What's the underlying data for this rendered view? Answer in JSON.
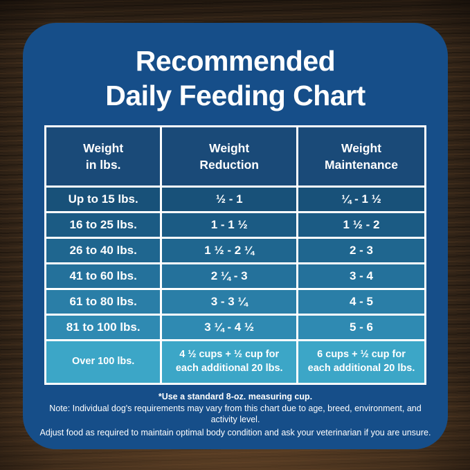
{
  "title": {
    "line1": "Recommended",
    "line2": "Daily Feeding Chart"
  },
  "chart_data": {
    "type": "table",
    "title": "Recommended Daily Feeding Chart",
    "columns": [
      "Weight\nin lbs.",
      "Weight\nReduction",
      "Weight\nMaintenance"
    ],
    "rows": [
      [
        "Up to 15 lbs.",
        "½ - 1",
        "¼ - 1 ½"
      ],
      [
        "16 to 25 lbs.",
        "1 - 1 ½",
        "1 ½ - 2"
      ],
      [
        "26 to 40 lbs.",
        "1 ½ - 2 ¼",
        "2 - 3"
      ],
      [
        "41 to 60 lbs.",
        "2 ¼ - 3",
        "3 - 4"
      ],
      [
        "61 to 80 lbs.",
        "3 - 3 ¼",
        "4 - 5"
      ],
      [
        "81 to 100 lbs.",
        "3 ¼ - 4 ½",
        "5 - 6"
      ],
      [
        "Over 100 lbs.",
        "4 ½ cups  + ½ cup for\neach additional 20 lbs.",
        "6 cups  + ½ cup for\neach additional 20 lbs."
      ]
    ],
    "row_colors": [
      "#185179",
      "#1b5b84",
      "#1f668f",
      "#24719b",
      "#2a7ea7",
      "#2f8ab2",
      "#3ca6c7"
    ]
  },
  "notes": {
    "footnote": "*Use a standard 8-oz. measuring cup.",
    "line1": "Note: Individual dog's requirements may vary from this chart due to age, breed, environment, and activity level.",
    "line2": "Adjust food as required to maintain optimal body condition and ask your veterinarian if you are unsure."
  },
  "colors": {
    "card_blue": "#164e89",
    "header_blue": "#1a4a78",
    "table_border": "#ffffff",
    "text": "#ffffff",
    "wood_brown": "#42301f"
  }
}
